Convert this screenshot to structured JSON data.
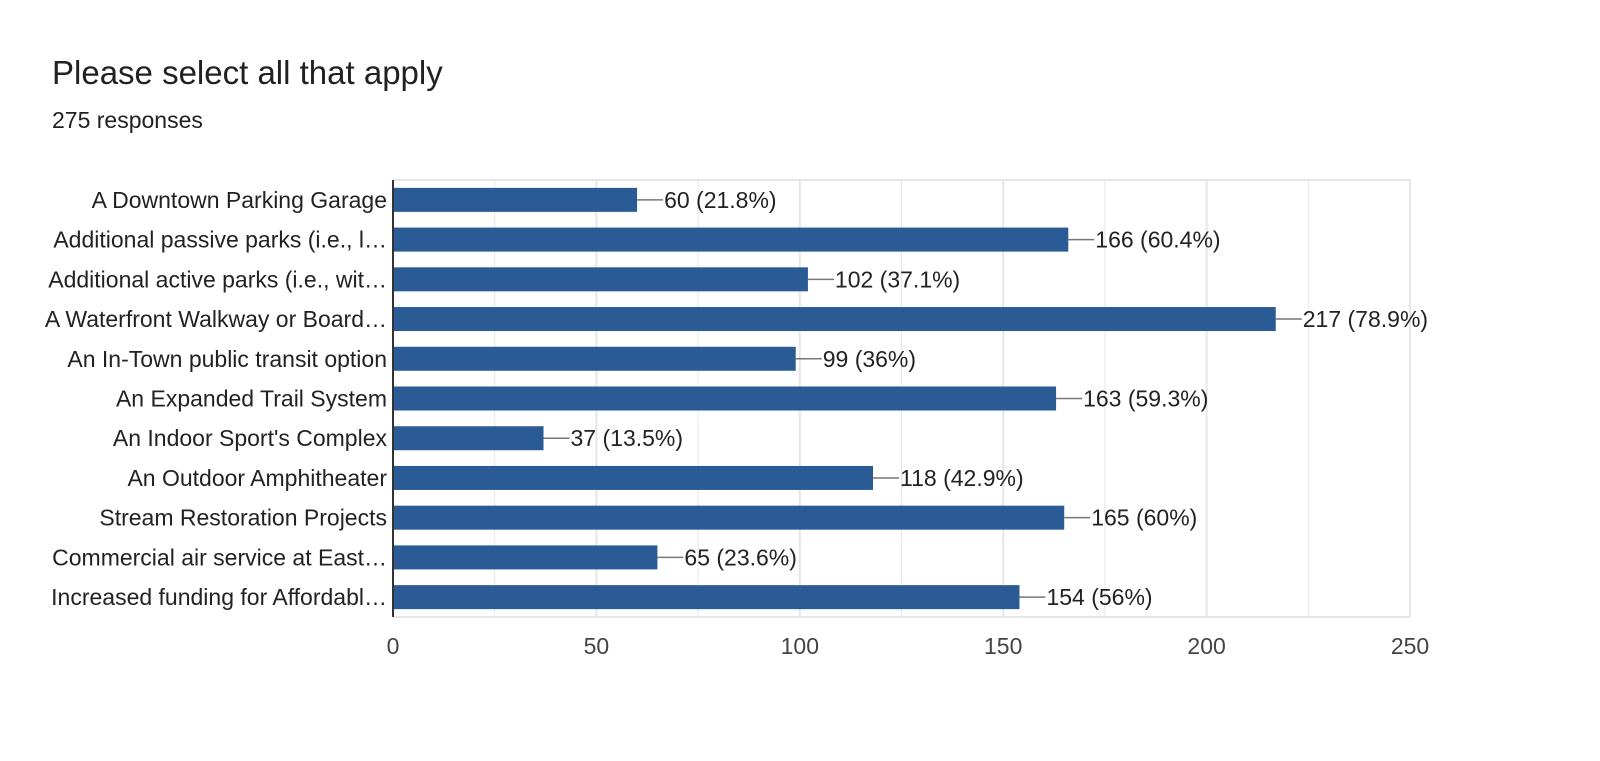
{
  "header": {
    "title": "Please select all that apply",
    "subtitle": "275 responses"
  },
  "chart_data": {
    "type": "bar",
    "orientation": "horizontal",
    "categories": [
      "A Downtown Parking Garage",
      "Additional passive parks (i.e., l…",
      "Additional active parks (i.e., wit…",
      "A Waterfront Walkway or Board…",
      "An In-Town public transit option",
      "An Expanded Trail System",
      "An Indoor Sport's Complex",
      "An Outdoor Amphitheater",
      "Stream Restoration Projects",
      "Commercial air service at East…",
      "Increased funding for Affordabl…"
    ],
    "values": [
      60,
      166,
      102,
      217,
      99,
      163,
      37,
      118,
      165,
      65,
      154
    ],
    "data_labels": [
      "60 (21.8%)",
      "166 (60.4%)",
      "102 (37.1%)",
      "217 (78.9%)",
      "99 (36%)",
      "163 (59.3%)",
      "37 (13.5%)",
      "118 (42.9%)",
      "165 (60%)",
      "65 (23.6%)",
      "154 (56%)"
    ],
    "xlim": [
      0,
      250
    ],
    "xticks": [
      "0",
      "50",
      "100",
      "150",
      "200",
      "250"
    ],
    "grid": true,
    "bar_color": "#2a5b94",
    "grid_color": "#e6e6e6",
    "axis_color": "#333333"
  }
}
